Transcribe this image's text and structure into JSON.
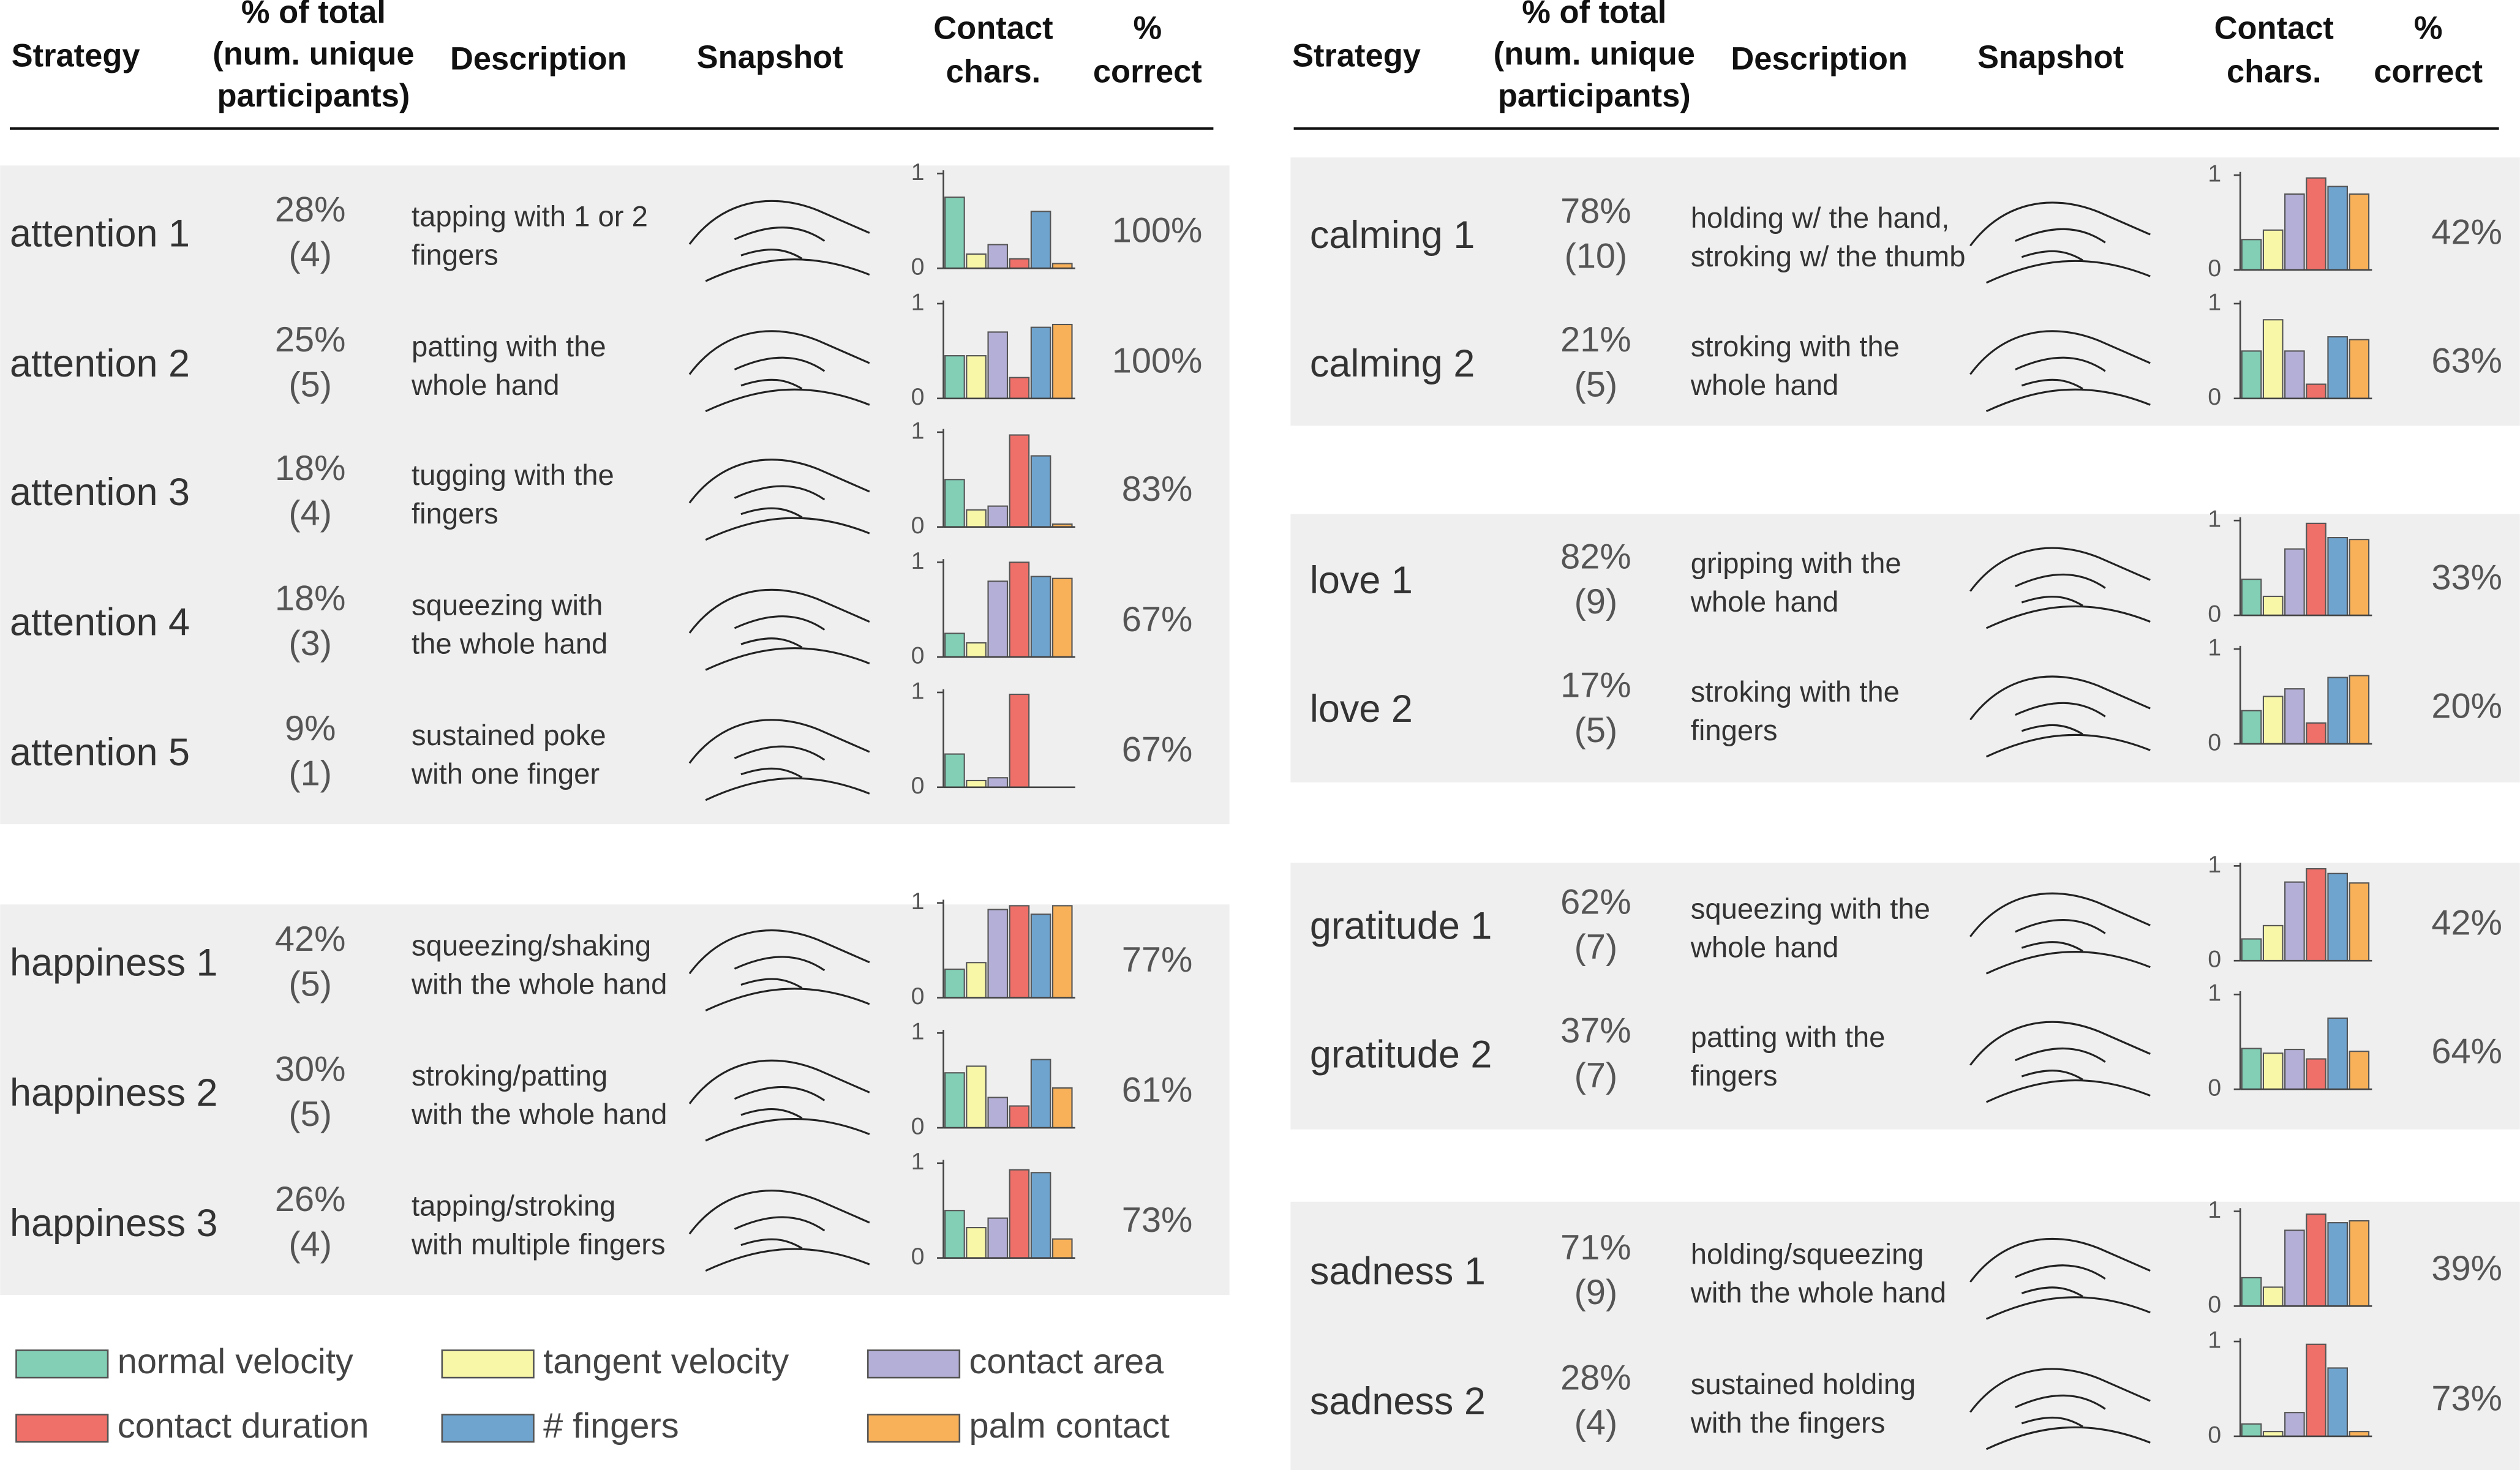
{
  "headers": [
    [
      "Strategy"
    ],
    [
      "% of total",
      "(num. unique",
      "participants)"
    ],
    [
      "Description"
    ],
    [
      "Snapshot"
    ],
    [
      "Contact",
      "chars."
    ],
    [
      "%",
      "correct"
    ]
  ],
  "mini_axis": {
    "ylim": [
      0,
      1
    ],
    "yticks": [
      0,
      1
    ]
  },
  "legend": [
    {
      "name": "normal velocity",
      "color": "#82cfb6"
    },
    {
      "name": "tangent velocity",
      "color": "#f8f7a8"
    },
    {
      "name": "contact area",
      "color": "#b4afd6"
    },
    {
      "name": "contact duration",
      "color": "#ef7069"
    },
    {
      "name": "# fingers",
      "color": "#6fa4cf"
    },
    {
      "name": "palm contact",
      "color": "#f8b159"
    }
  ],
  "panels": [
    {
      "groups": [
        {
          "rows": [
            {
              "strategy": "attention 1",
              "percent": "28%",
              "count": "(4)",
              "description": [
                "tapping with 1 or 2",
                "fingers"
              ],
              "values": [
                0.75,
                0.15,
                0.25,
                0.1,
                0.6,
                0.05
              ],
              "correct": "100%"
            },
            {
              "strategy": "attention 2",
              "percent": "25%",
              "count": "(5)",
              "description": [
                "patting with the",
                "whole hand"
              ],
              "values": [
                0.45,
                0.45,
                0.7,
                0.22,
                0.75,
                0.78
              ],
              "correct": "100%"
            },
            {
              "strategy": "attention 3",
              "percent": "18%",
              "count": "(4)",
              "description": [
                "tugging with the",
                "fingers"
              ],
              "values": [
                0.5,
                0.18,
                0.22,
                0.97,
                0.75,
                0.03
              ],
              "correct": "83%"
            },
            {
              "strategy": "attention 4",
              "percent": "18%",
              "count": "(3)",
              "description": [
                "squeezing with",
                "the whole hand"
              ],
              "values": [
                0.25,
                0.15,
                0.8,
                1.0,
                0.85,
                0.83
              ],
              "correct": "67%"
            },
            {
              "strategy": "attention 5",
              "percent": "9%",
              "count": "(1)",
              "description": [
                "sustained poke",
                "with one finger"
              ],
              "values": [
                0.35,
                0.07,
                0.1,
                0.98,
                0,
                0
              ],
              "correct": "67%"
            }
          ]
        },
        {
          "rows": [
            {
              "strategy": "happiness 1",
              "percent": "42%",
              "count": "(5)",
              "description": [
                "squeezing/shaking",
                "with the whole hand"
              ],
              "values": [
                0.3,
                0.37,
                0.93,
                0.97,
                0.88,
                0.97
              ],
              "correct": "77%"
            },
            {
              "strategy": "happiness 2",
              "percent": "30%",
              "count": "(5)",
              "description": [
                "stroking/patting",
                "with the whole hand"
              ],
              "values": [
                0.58,
                0.65,
                0.32,
                0.23,
                0.72,
                0.42
              ],
              "correct": "61%"
            },
            {
              "strategy": "happiness 3",
              "percent": "26%",
              "count": "(4)",
              "description": [
                "tapping/stroking",
                "with multiple fingers"
              ],
              "values": [
                0.5,
                0.32,
                0.42,
                0.93,
                0.9,
                0.2
              ],
              "correct": "73%"
            }
          ]
        }
      ]
    },
    {
      "groups": [
        {
          "rows": [
            {
              "strategy": "calming 1",
              "percent": "78%",
              "count": "(10)",
              "description": [
                "holding w/ the hand,",
                "stroking w/ the thumb"
              ],
              "values": [
                0.32,
                0.42,
                0.8,
                0.97,
                0.88,
                0.8
              ],
              "correct": "42%"
            },
            {
              "strategy": "calming 2",
              "percent": "21%",
              "count": "(5)",
              "description": [
                "stroking with the",
                "whole hand"
              ],
              "values": [
                0.5,
                0.83,
                0.5,
                0.15,
                0.65,
                0.62
              ],
              "correct": "63%"
            }
          ]
        },
        {
          "rows": [
            {
              "strategy": "love 1",
              "percent": "82%",
              "count": "(9)",
              "description": [
                "gripping with the",
                "whole hand"
              ],
              "values": [
                0.38,
                0.2,
                0.7,
                0.97,
                0.82,
                0.8
              ],
              "correct": "33%"
            },
            {
              "strategy": "love 2",
              "percent": "17%",
              "count": "(5)",
              "description": [
                "stroking with the",
                "fingers"
              ],
              "values": [
                0.35,
                0.5,
                0.58,
                0.22,
                0.7,
                0.72
              ],
              "correct": "20%"
            }
          ]
        },
        {
          "rows": [
            {
              "strategy": "gratitude 1",
              "percent": "62%",
              "count": "(7)",
              "description": [
                "squeezing with the",
                "whole hand"
              ],
              "values": [
                0.23,
                0.37,
                0.83,
                0.97,
                0.92,
                0.82
              ],
              "correct": "42%"
            },
            {
              "strategy": "gratitude 2",
              "percent": "37%",
              "count": "(7)",
              "description": [
                "patting with the",
                "fingers"
              ],
              "values": [
                0.43,
                0.38,
                0.42,
                0.32,
                0.75,
                0.4
              ],
              "correct": "64%"
            }
          ]
        },
        {
          "rows": [
            {
              "strategy": "sadness 1",
              "percent": "71%",
              "count": "(9)",
              "description": [
                "holding/squeezing",
                "with the whole hand"
              ],
              "values": [
                0.3,
                0.2,
                0.8,
                0.97,
                0.88,
                0.9
              ],
              "correct": "39%"
            },
            {
              "strategy": "sadness 2",
              "percent": "28%",
              "count": "(4)",
              "description": [
                "sustained holding",
                "with the fingers"
              ],
              "values": [
                0.13,
                0.05,
                0.25,
                0.97,
                0.72,
                0.05
              ],
              "correct": "73%"
            }
          ]
        }
      ]
    }
  ]
}
